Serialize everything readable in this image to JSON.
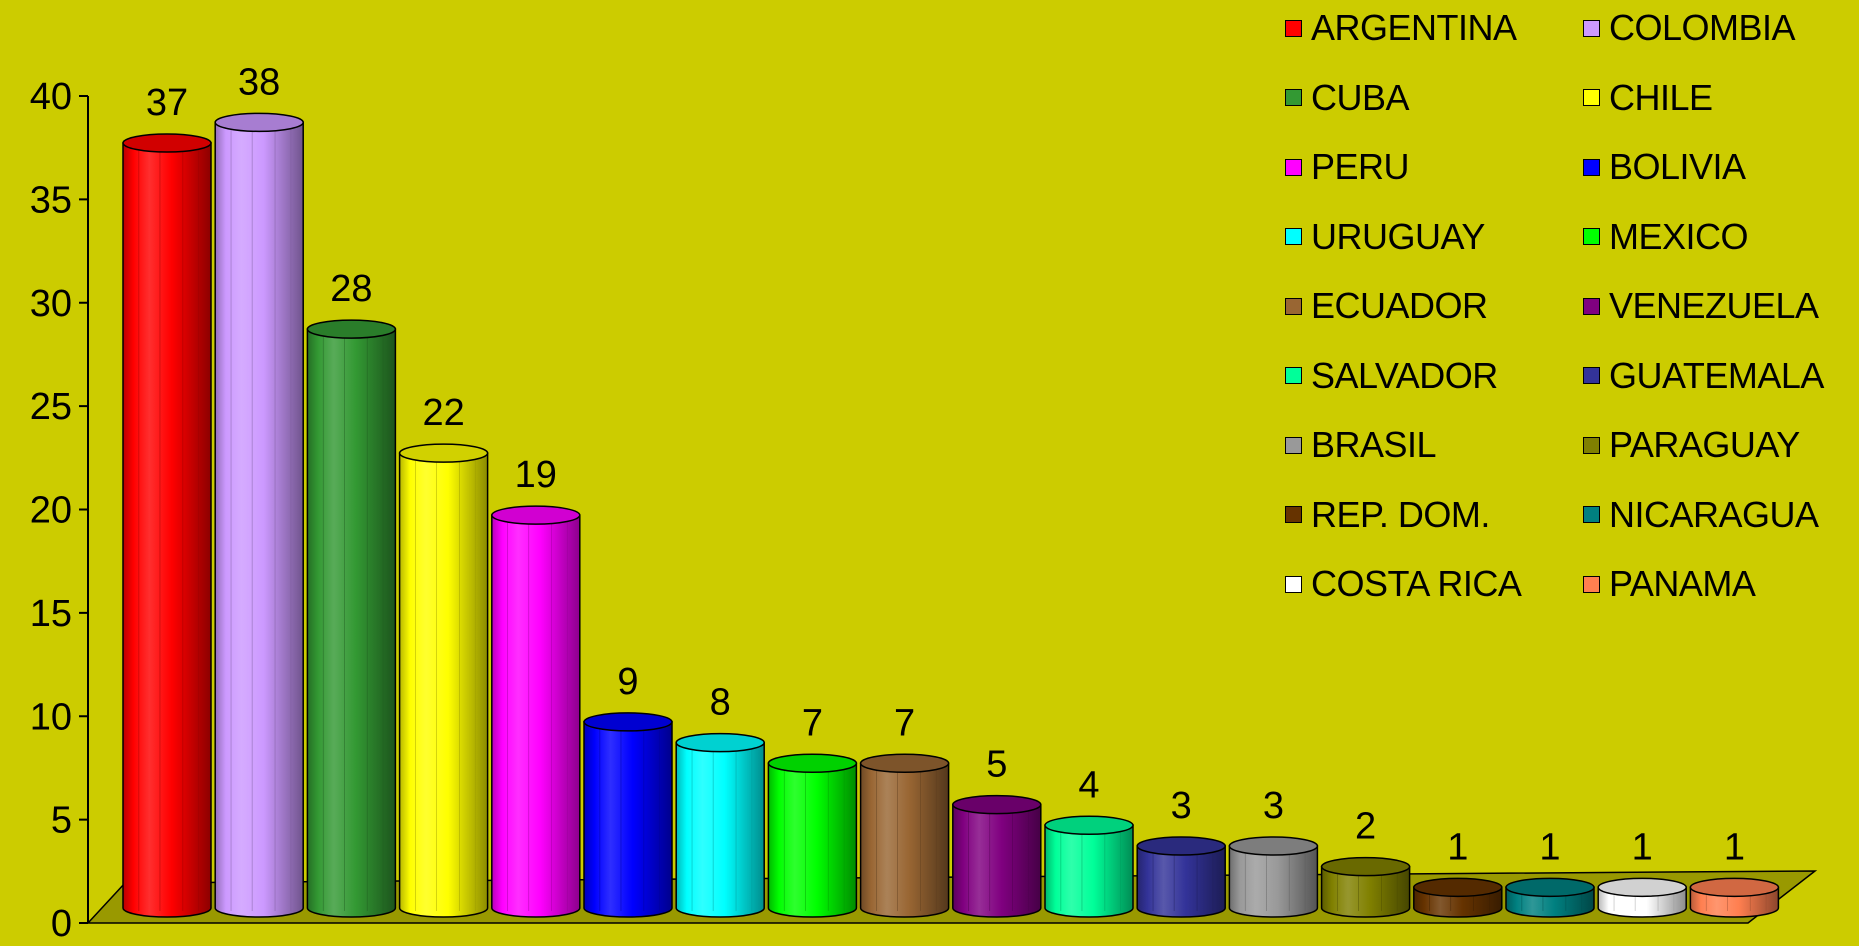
{
  "chart_data": {
    "type": "bar",
    "title": "",
    "xlabel": "",
    "ylabel": "",
    "ylim": [
      0,
      40
    ],
    "yticks": [
      "0",
      "5",
      "10",
      "15",
      "20",
      "25",
      "30",
      "35",
      "40"
    ],
    "legend_position": "top-right",
    "grid": false,
    "categories": [
      "ARGENTINA",
      "COLOMBIA",
      "CUBA",
      "CHILE",
      "PERU",
      "BOLIVIA",
      "URUGUAY",
      "MEXICO",
      "ECUADOR",
      "VENEZUELA",
      "SALVADOR",
      "GUATEMALA",
      "BRASIL",
      "PARAGUAY",
      "REP. DOM.",
      "NICARAGUA",
      "COSTA RICA",
      "PANAMA"
    ],
    "values": [
      37,
      38,
      28,
      22,
      19,
      9,
      8,
      7,
      7,
      5,
      4,
      3,
      3,
      2,
      1,
      1,
      1,
      1
    ],
    "data_labels": [
      "37",
      "38",
      "28",
      "22",
      "19",
      "9",
      "8",
      "7",
      "7",
      "5",
      "4",
      "3",
      "3",
      "2",
      "1",
      "1",
      "1",
      "1"
    ],
    "colors": [
      "#FF0000",
      "#CC99FF",
      "#339933",
      "#FFFF00",
      "#FF00FF",
      "#0000FF",
      "#00FFFF",
      "#00FF00",
      "#996633",
      "#800080",
      "#00FF99",
      "#333399",
      "#999999",
      "#808000",
      "#663300",
      "#008080",
      "#FFFFFF",
      "#FF7F50"
    ],
    "background": "#CCCC00",
    "floor_color": "#999900"
  }
}
